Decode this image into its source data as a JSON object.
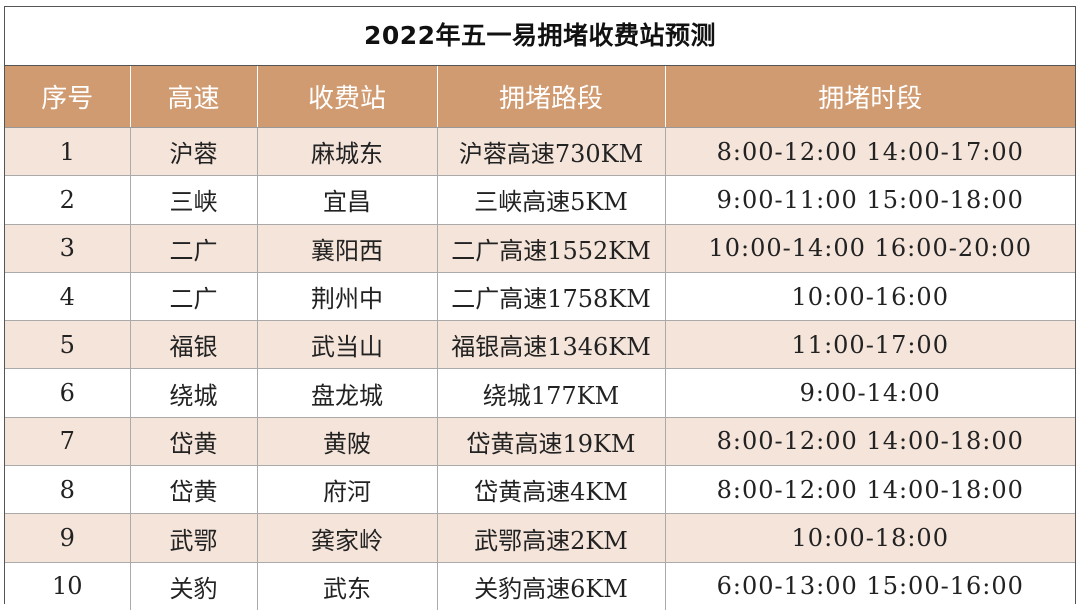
{
  "title": "2022年五一易拥堵收费站预测",
  "headers": [
    "序号",
    "高速",
    "收费站",
    "拥堵路段",
    "拥堵时段"
  ],
  "colors": {
    "header_bg": "#d19b72",
    "header_text": "#ffffff",
    "shaded_row": "#f4e4da",
    "plain_row": "#ffffff"
  },
  "rows": [
    [
      "1",
      "沪蓉",
      "麻城东",
      "沪蓉高速730KM",
      "8:00-12:00 14:00-17:00"
    ],
    [
      "2",
      "三峡",
      "宜昌",
      "三峡高速5KM",
      "9:00-11:00 15:00-18:00"
    ],
    [
      "3",
      "二广",
      "襄阳西",
      "二广高速1552KM",
      "10:00-14:00 16:00-20:00"
    ],
    [
      "4",
      "二广",
      "荆州中",
      "二广高速1758KM",
      "10:00-16:00"
    ],
    [
      "5",
      "福银",
      "武当山",
      "福银高速1346KM",
      "11:00-17:00"
    ],
    [
      "6",
      "绕城",
      "盘龙城",
      "绕城177KM",
      "9:00-14:00"
    ],
    [
      "7",
      "岱黄",
      "黄陂",
      "岱黄高速19KM",
      "8:00-12:00 14:00-18:00"
    ],
    [
      "8",
      "岱黄",
      "府河",
      "岱黄高速4KM",
      "8:00-12:00 14:00-18:00"
    ],
    [
      "9",
      "武鄂",
      "龚家岭",
      "武鄂高速2KM",
      "10:00-18:00"
    ],
    [
      "10",
      "关豹",
      "武东",
      "关豹高速6KM",
      "6:00-13:00 15:00-16:00"
    ]
  ]
}
